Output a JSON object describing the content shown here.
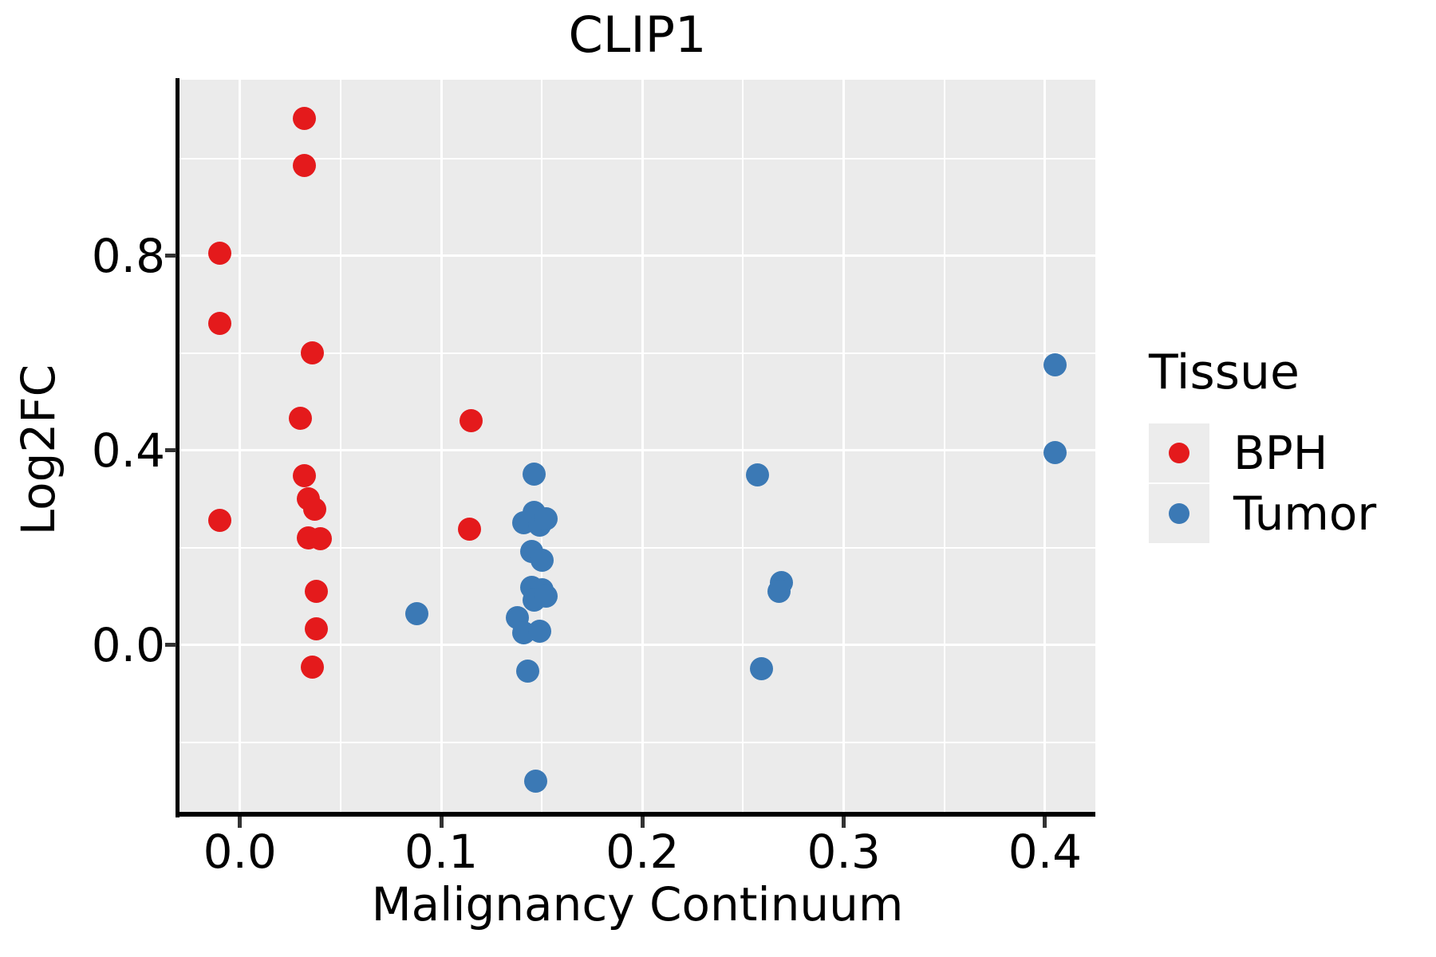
{
  "figure": {
    "title": "CLIP1"
  },
  "axes": {
    "x_label": "Malignancy Continuum",
    "y_label": "Log2FC"
  },
  "legend": {
    "title": "Tissue",
    "entries": [
      {
        "label": "BPH",
        "color": "#E41A1C"
      },
      {
        "label": "Tumor",
        "color": "#3B79B5"
      }
    ]
  },
  "chart_data": {
    "type": "scatter",
    "title": "CLIP1",
    "xlabel": "Malignancy Continuum",
    "ylabel": "Log2FC",
    "xlim": [
      -0.03,
      0.425
    ],
    "ylim": [
      -0.346,
      1.162
    ],
    "grid": true,
    "background_color": "#EBEBEB",
    "gridline_color": "#FFFFFF",
    "legend_position": "right",
    "x_ticks": {
      "values": [
        0.0,
        0.1,
        0.2,
        0.3,
        0.4
      ],
      "labels": [
        "0.0",
        "0.1",
        "0.2",
        "0.3",
        "0.4"
      ]
    },
    "y_ticks": {
      "values": [
        0.0,
        0.4,
        0.8
      ],
      "labels": [
        "0.0",
        "0.4",
        "0.8"
      ]
    },
    "x_minor_gridlines": [
      0.05,
      0.15,
      0.25,
      0.35
    ],
    "y_minor_gridlines": [
      -0.2,
      0.2,
      0.6,
      1.0
    ],
    "series": [
      {
        "name": "BPH",
        "color": "#E41A1C",
        "points": [
          [
            -0.01,
            0.805
          ],
          [
            -0.01,
            0.661
          ],
          [
            -0.01,
            0.257
          ],
          [
            0.032,
            1.082
          ],
          [
            0.032,
            0.985
          ],
          [
            0.036,
            0.6
          ],
          [
            0.03,
            0.467
          ],
          [
            0.032,
            0.348
          ],
          [
            0.034,
            0.3
          ],
          [
            0.037,
            0.28
          ],
          [
            0.034,
            0.221
          ],
          [
            0.04,
            0.218
          ],
          [
            0.038,
            0.11
          ],
          [
            0.038,
            0.033
          ],
          [
            0.036,
            -0.046
          ],
          [
            0.115,
            0.462
          ],
          [
            0.114,
            0.238
          ]
        ]
      },
      {
        "name": "Tumor",
        "color": "#3B79B5",
        "points": [
          [
            0.088,
            0.064
          ],
          [
            0.146,
            0.351
          ],
          [
            0.141,
            0.252
          ],
          [
            0.146,
            0.272
          ],
          [
            0.149,
            0.247
          ],
          [
            0.152,
            0.26
          ],
          [
            0.145,
            0.192
          ],
          [
            0.15,
            0.174
          ],
          [
            0.145,
            0.118
          ],
          [
            0.15,
            0.113
          ],
          [
            0.146,
            0.092
          ],
          [
            0.152,
            0.1
          ],
          [
            0.138,
            0.056
          ],
          [
            0.141,
            0.026
          ],
          [
            0.149,
            0.028
          ],
          [
            0.143,
            -0.054
          ],
          [
            0.147,
            -0.28
          ],
          [
            0.257,
            0.349
          ],
          [
            0.269,
            0.128
          ],
          [
            0.268,
            0.11
          ],
          [
            0.259,
            -0.048
          ],
          [
            0.405,
            0.576
          ],
          [
            0.405,
            0.395
          ]
        ]
      }
    ]
  }
}
